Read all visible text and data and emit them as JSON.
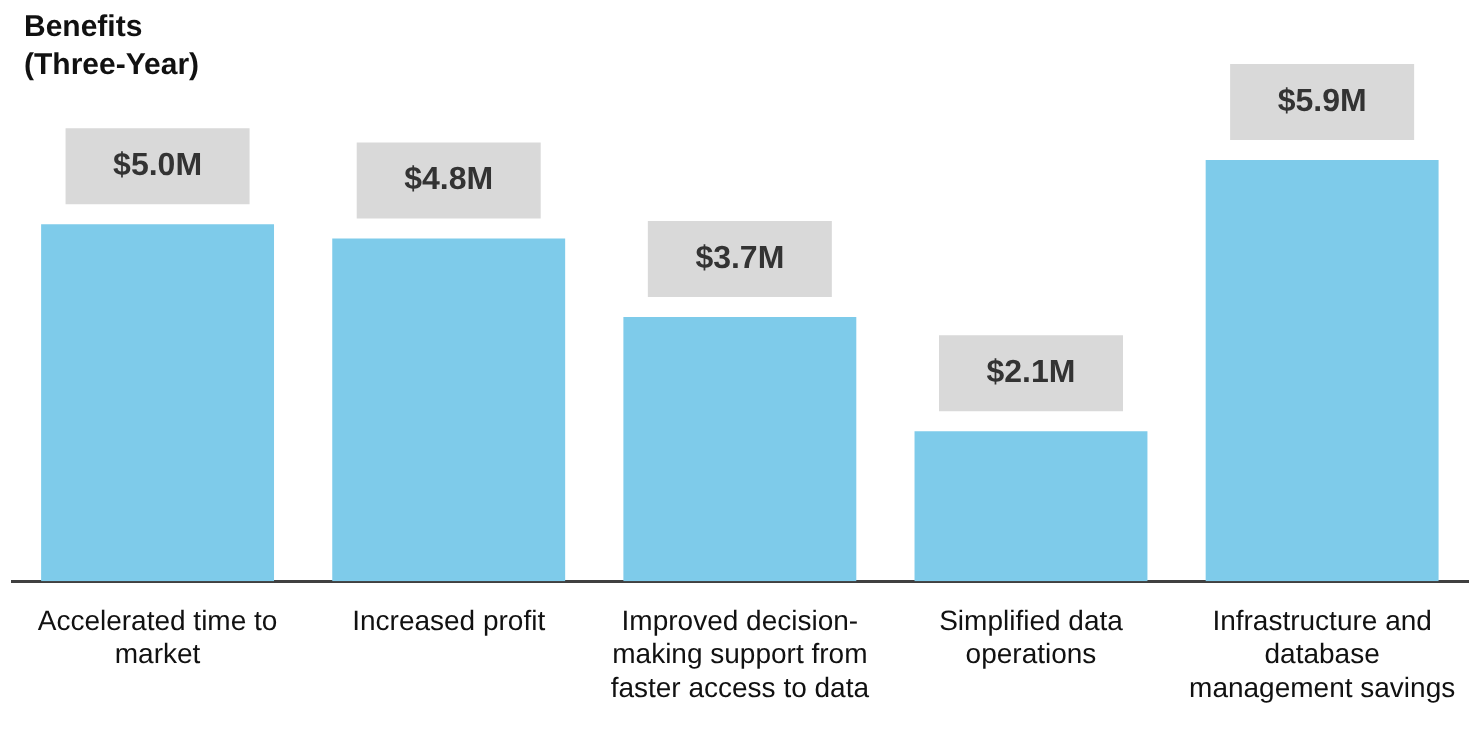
{
  "chart_data": {
    "type": "bar",
    "title": "Benefits\n(Three-Year)",
    "categories": [
      "Accelerated time to market",
      "Increased profit",
      "Improved decision-making support from faster access to data",
      "Simplified data operations",
      "Infrastructure and database management savings"
    ],
    "values": [
      5.0,
      4.8,
      3.7,
      2.1,
      5.9
    ],
    "value_labels": [
      "$5.0M",
      "$4.8M",
      "$3.7M",
      "$2.1M",
      "$5.9M"
    ],
    "color": "#7ecbea",
    "grid": false,
    "legend": false
  }
}
